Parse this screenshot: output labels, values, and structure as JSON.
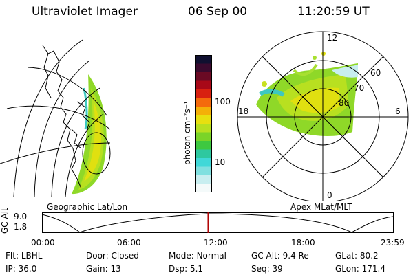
{
  "header": {
    "instrument": "Ultraviolet Imager",
    "date": "06 Sep 00",
    "time": "11:20:59 UT"
  },
  "panels": {
    "geo_label": "Geographic Lat/Lon",
    "apex_label": "Apex MLat/MLT"
  },
  "colorbar": {
    "unit_label": "photon cm⁻²s⁻¹",
    "ticks": [
      "100",
      "10"
    ],
    "colors": [
      "#101030",
      "#3a0a2e",
      "#6a0a24",
      "#a80818",
      "#d82010",
      "#f46a0c",
      "#f4b008",
      "#e8e010",
      "#b8e020",
      "#7ad428",
      "#3ec840",
      "#2ec8a0",
      "#40d8d8",
      "#80e0e0",
      "#c8eef0",
      "#f4fafa"
    ]
  },
  "polar_plot": {
    "mlt_labels": {
      "top": "12",
      "bottom": "0",
      "left": "18",
      "right": "6"
    },
    "lat_labels": [
      "60",
      "70",
      "80"
    ]
  },
  "altitude_plot": {
    "ylabel": "GC Alt",
    "yticks": [
      "9.0",
      "1.8"
    ],
    "xticks": [
      "00:00",
      "06:00",
      "12:00",
      "18:00",
      "23:59"
    ],
    "current_time_fraction": 0.473,
    "marker_color": "#b00000"
  },
  "info_rows": [
    [
      {
        "label": "Flt:",
        "value": "LBHL"
      },
      {
        "label": "Door:",
        "value": "Closed"
      },
      {
        "label": "Mode:",
        "value": "Normal"
      },
      {
        "label": "GC Alt:",
        "value": "9.4 Re"
      },
      {
        "label": "GLat:",
        "value": "80.2"
      }
    ],
    [
      {
        "label": "IP:",
        "value": "36.0"
      },
      {
        "label": "Gain:",
        "value": "13"
      },
      {
        "label": "Dsp:",
        "value": "5.1"
      },
      {
        "label": "Seq:",
        "value": "39"
      },
      {
        "label": "GLon:",
        "value": "171.4"
      }
    ]
  ]
}
